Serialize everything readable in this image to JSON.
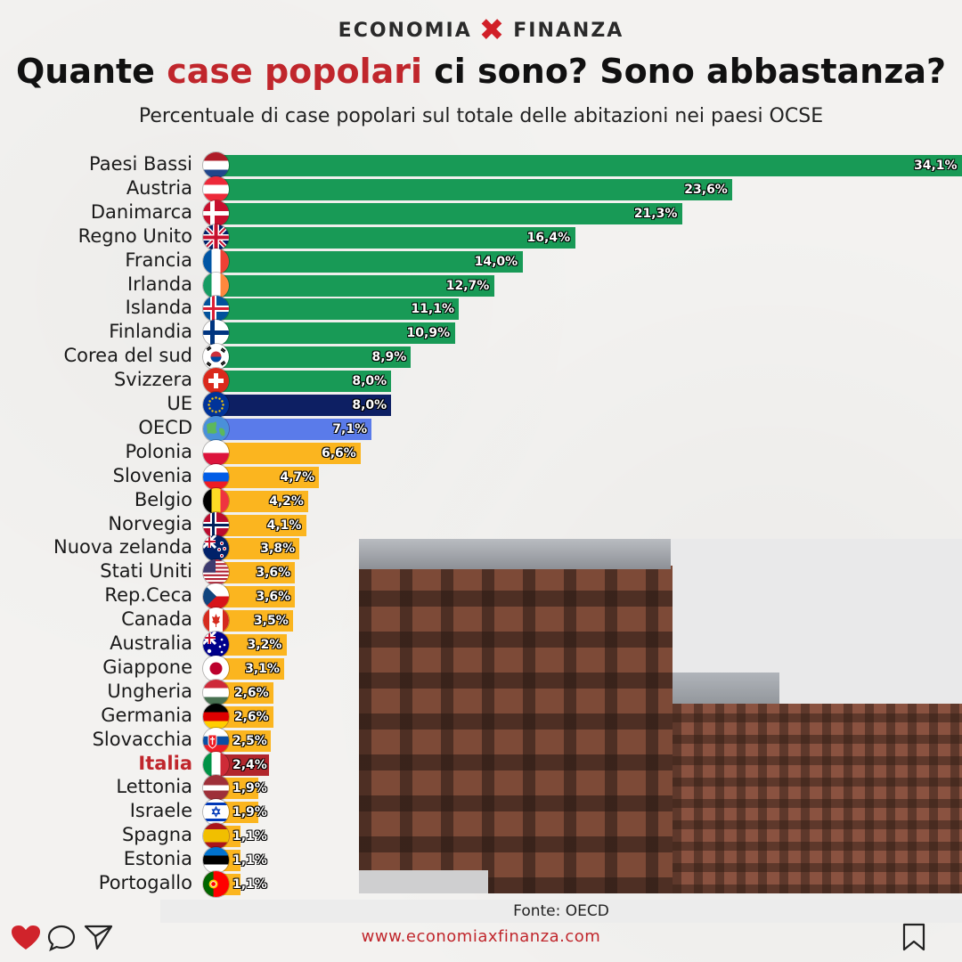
{
  "brand": {
    "left": "ECONOMIA",
    "right": "FINANZA"
  },
  "header": {
    "title_part1": "Quante ",
    "title_highlight": "case popolari",
    "title_part2": " ci sono? Sono abbastanza?",
    "subtitle": "Percentuale di case popolari sul totale delle abitazioni nei paesi OCSE"
  },
  "footer": {
    "source": "Fonte: OECD",
    "url": "www.economiaxfinanza.com"
  },
  "colors": {
    "accent": "#c0262c",
    "green": "#189a56",
    "eu": "#0d1f63",
    "oecd": "#5a7bea",
    "yellow": "#fbb51f",
    "italia": "#b1262c"
  },
  "icons": [
    "heart-icon",
    "comment-icon",
    "send-icon",
    "bookmark-icon"
  ],
  "chart_data": {
    "type": "bar",
    "orientation": "horizontal",
    "title": "Quante case popolari ci sono? Sono abbastanza?",
    "subtitle": "Percentuale di case popolari sul totale delle abitazioni nei paesi OCSE",
    "categories": [
      "Paesi Bassi",
      "Austria",
      "Danimarca",
      "Regno Unito",
      "Francia",
      "Irlanda",
      "Islanda",
      "Finlandia",
      "Corea del sud",
      "Svizzera",
      "UE",
      "OECD",
      "Polonia",
      "Slovenia",
      "Belgio",
      "Norvegia",
      "Nuova zelanda",
      "Stati Uniti",
      "Rep.Ceca",
      "Canada",
      "Australia",
      "Giappone",
      "Ungheria",
      "Germania",
      "Slovacchia",
      "Italia",
      "Lettonia",
      "Israele",
      "Spagna",
      "Estonia",
      "Portogallo"
    ],
    "values": [
      34.1,
      23.6,
      21.3,
      16.4,
      14.0,
      12.7,
      11.1,
      10.9,
      8.9,
      8.0,
      8.0,
      7.1,
      6.6,
      4.7,
      4.2,
      4.1,
      3.8,
      3.6,
      3.6,
      3.5,
      3.2,
      3.1,
      2.6,
      2.6,
      2.5,
      2.4,
      1.9,
      1.9,
      1.1,
      1.1,
      1.1
    ],
    "value_labels": [
      "34,1%",
      "23,6%",
      "21,3%",
      "16,4%",
      "14,0%",
      "12,7%",
      "11,1%",
      "10,9%",
      "8,9%",
      "8,0%",
      "8,0%",
      "7,1%",
      "6,6%",
      "4,7%",
      "4,2%",
      "4,1%",
      "3,8%",
      "3,6%",
      "3,6%",
      "3,5%",
      "3,2%",
      "3,1%",
      "2,6%",
      "2,6%",
      "2,5%",
      "2,4%",
      "1,9%",
      "1,9%",
      "1,1%",
      "1,1%",
      "1,1%"
    ],
    "groups": [
      "above",
      "above",
      "above",
      "above",
      "above",
      "above",
      "above",
      "above",
      "above",
      "above",
      "eu",
      "oecd",
      "below",
      "below",
      "below",
      "below",
      "below",
      "below",
      "below",
      "below",
      "below",
      "below",
      "below",
      "below",
      "below",
      "italia",
      "below",
      "below",
      "below",
      "below",
      "below"
    ],
    "xlim": [
      0,
      34.1
    ],
    "source": "Fonte: OECD"
  }
}
